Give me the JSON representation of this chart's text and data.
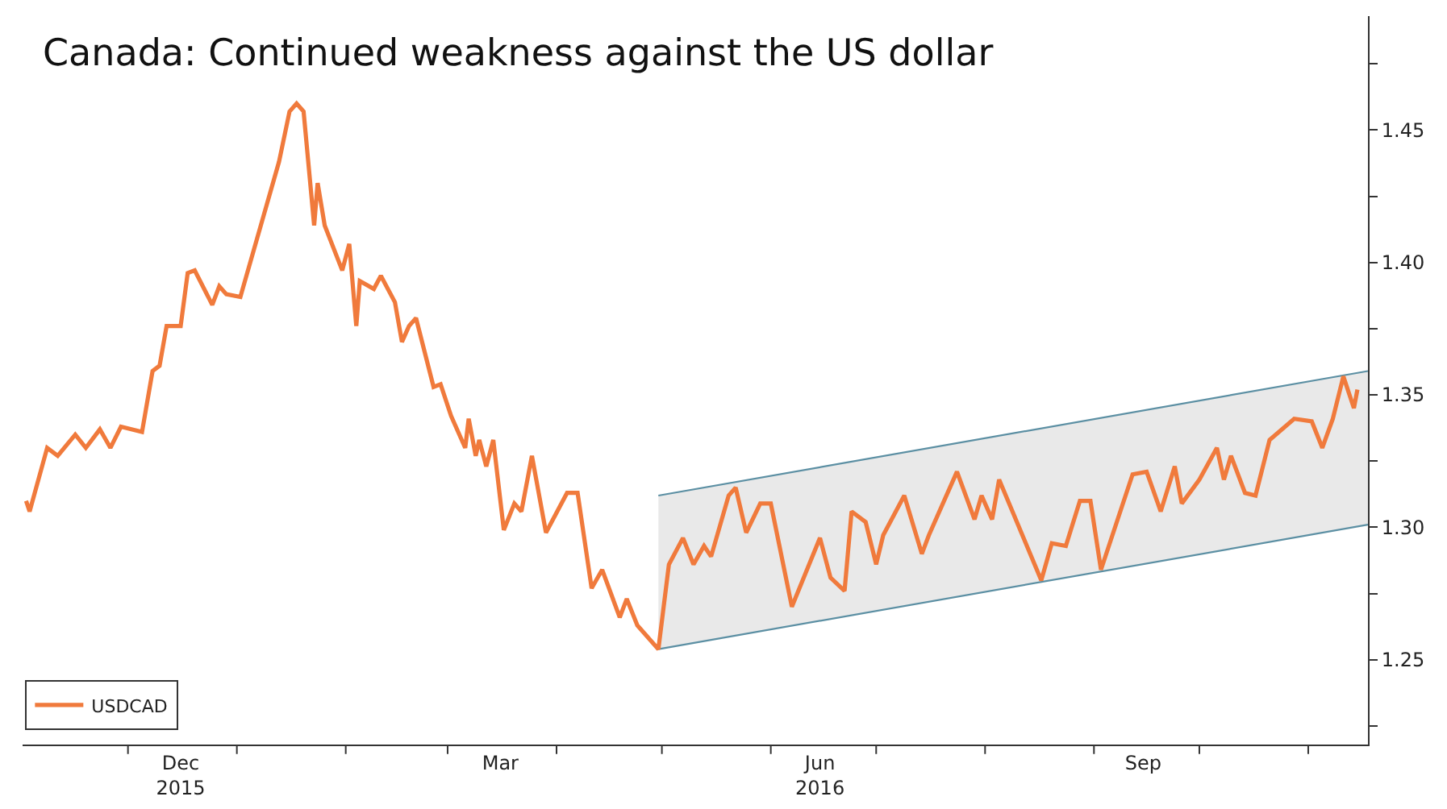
{
  "chart_data": {
    "type": "line",
    "title": "Canada: Continued weakness against the US dollar",
    "series": [
      {
        "name": "USDCAD",
        "color": "#f07a3c",
        "x": [
          "2015-11-02",
          "2015-11-03",
          "2015-11-08",
          "2015-11-11",
          "2015-11-16",
          "2015-11-19",
          "2015-11-23",
          "2015-11-26",
          "2015-11-29",
          "2015-12-05",
          "2015-12-08",
          "2015-12-10",
          "2015-12-12",
          "2015-12-16",
          "2015-12-18",
          "2015-12-20",
          "2015-12-25",
          "2015-12-27",
          "2015-12-29",
          "2016-01-02",
          "2016-01-13",
          "2016-01-16",
          "2016-01-18",
          "2016-01-20",
          "2016-01-23",
          "2016-01-24",
          "2016-01-26",
          "2016-01-31",
          "2016-02-02",
          "2016-02-04",
          "2016-02-05",
          "2016-02-09",
          "2016-02-11",
          "2016-02-15",
          "2016-02-17",
          "2016-02-19",
          "2016-02-21",
          "2016-02-26",
          "2016-02-28",
          "2016-03-02",
          "2016-03-06",
          "2016-03-07",
          "2016-03-09",
          "2016-03-10",
          "2016-03-12",
          "2016-03-14",
          "2016-03-17",
          "2016-03-20",
          "2016-03-22",
          "2016-03-25",
          "2016-03-29",
          "2016-04-04",
          "2016-04-07",
          "2016-04-11",
          "2016-04-14",
          "2016-04-19",
          "2016-04-21",
          "2016-04-24",
          "2016-04-30",
          "2016-05-03",
          "2016-05-07",
          "2016-05-10",
          "2016-05-13",
          "2016-05-15",
          "2016-05-20",
          "2016-05-22",
          "2016-05-25",
          "2016-05-29",
          "2016-06-01",
          "2016-06-07",
          "2016-06-15",
          "2016-06-18",
          "2016-06-22",
          "2016-06-24",
          "2016-06-28",
          "2016-07-01",
          "2016-07-03",
          "2016-07-09",
          "2016-07-14",
          "2016-07-16",
          "2016-07-24",
          "2016-07-29",
          "2016-07-31",
          "2016-08-03",
          "2016-08-05",
          "2016-08-17",
          "2016-08-20",
          "2016-08-24",
          "2016-08-28",
          "2016-08-31",
          "2016-09-03",
          "2016-09-08",
          "2016-09-12",
          "2016-09-16",
          "2016-09-20",
          "2016-09-24",
          "2016-09-26",
          "2016-10-01",
          "2016-10-06",
          "2016-10-08",
          "2016-10-10",
          "2016-10-14",
          "2016-10-17",
          "2016-10-21",
          "2016-10-28",
          "2016-11-02",
          "2016-11-05",
          "2016-11-08",
          "2016-11-11",
          "2016-11-14",
          "2016-11-15"
        ],
        "values": [
          1.31,
          1.306,
          1.33,
          1.327,
          1.335,
          1.33,
          1.337,
          1.33,
          1.338,
          1.336,
          1.359,
          1.361,
          1.376,
          1.376,
          1.396,
          1.397,
          1.384,
          1.391,
          1.388,
          1.387,
          1.438,
          1.457,
          1.46,
          1.457,
          1.414,
          1.43,
          1.414,
          1.397,
          1.407,
          1.376,
          1.393,
          1.39,
          1.395,
          1.385,
          1.37,
          1.376,
          1.379,
          1.353,
          1.354,
          1.342,
          1.33,
          1.341,
          1.327,
          1.333,
          1.323,
          1.333,
          1.299,
          1.309,
          1.306,
          1.327,
          1.298,
          1.313,
          1.313,
          1.277,
          1.284,
          1.266,
          1.273,
          1.263,
          1.254,
          1.286,
          1.296,
          1.286,
          1.293,
          1.289,
          1.312,
          1.315,
          1.298,
          1.309,
          1.309,
          1.27,
          1.296,
          1.281,
          1.276,
          1.306,
          1.302,
          1.286,
          1.297,
          1.312,
          1.29,
          1.297,
          1.321,
          1.303,
          1.312,
          1.303,
          1.318,
          1.28,
          1.294,
          1.293,
          1.31,
          1.31,
          1.284,
          1.304,
          1.32,
          1.321,
          1.306,
          1.323,
          1.309,
          1.318,
          1.33,
          1.318,
          1.327,
          1.313,
          1.312,
          1.333,
          1.341,
          1.34,
          1.33,
          1.341,
          1.357,
          1.345,
          1.352
        ]
      },
      {
        "type": "line",
        "color": "#5b8fa3",
        "x": [
          "2016-04-30",
          "2016-11-18"
        ],
        "values": [
          1.312,
          1.359
        ]
      },
      {
        "type": "line",
        "color": "#5b8fa3",
        "x": [
          "2016-04-30",
          "2016-11-18"
        ],
        "values": [
          1.254,
          1.301
        ]
      }
    ],
    "xlim": [
      "2015-11-01",
      "2016-11-18"
    ],
    "xticks": [
      {
        "value": "2015-12-01",
        "label": null
      },
      {
        "value": "2016-01-01",
        "label": null
      },
      {
        "value": "2016-02-01",
        "label": null
      },
      {
        "value": "2016-03-01",
        "label": null
      },
      {
        "value": "2016-04-01",
        "label": null
      },
      {
        "value": "2016-05-01",
        "label": null
      },
      {
        "value": "2016-06-01",
        "label": null
      },
      {
        "value": "2016-07-01",
        "label": null
      },
      {
        "value": "2016-08-01",
        "label": null
      },
      {
        "value": "2016-09-01",
        "label": null
      },
      {
        "value": "2016-10-01",
        "label": null
      },
      {
        "value": "2016-11-01",
        "label": null
      },
      {
        "value": "2015-12-16",
        "label": "Dec\n2015"
      },
      {
        "value": "2016-03-16",
        "label": "Mar"
      },
      {
        "value": "2016-06-15",
        "label": "Jun\n2016"
      },
      {
        "value": "2016-09-15",
        "label": "Sep"
      }
    ],
    "ylim": [
      1.218,
      1.493
    ],
    "yticks": [
      {
        "value": 1.225,
        "label": null
      },
      1.25,
      {
        "value": 1.275,
        "label": null
      },
      {
        "value": 1.3,
        "label": "1.30"
      },
      {
        "value": 1.325,
        "label": null
      },
      1.35,
      {
        "value": 1.375,
        "label": null
      },
      {
        "value": 1.4,
        "label": "1.40"
      },
      {
        "value": 1.425,
        "label": null
      },
      1.45,
      {
        "value": 1.475,
        "label": null
      }
    ],
    "grid": false,
    "legend": "bottom left",
    "marker": "none",
    "line_style": "solid"
  }
}
